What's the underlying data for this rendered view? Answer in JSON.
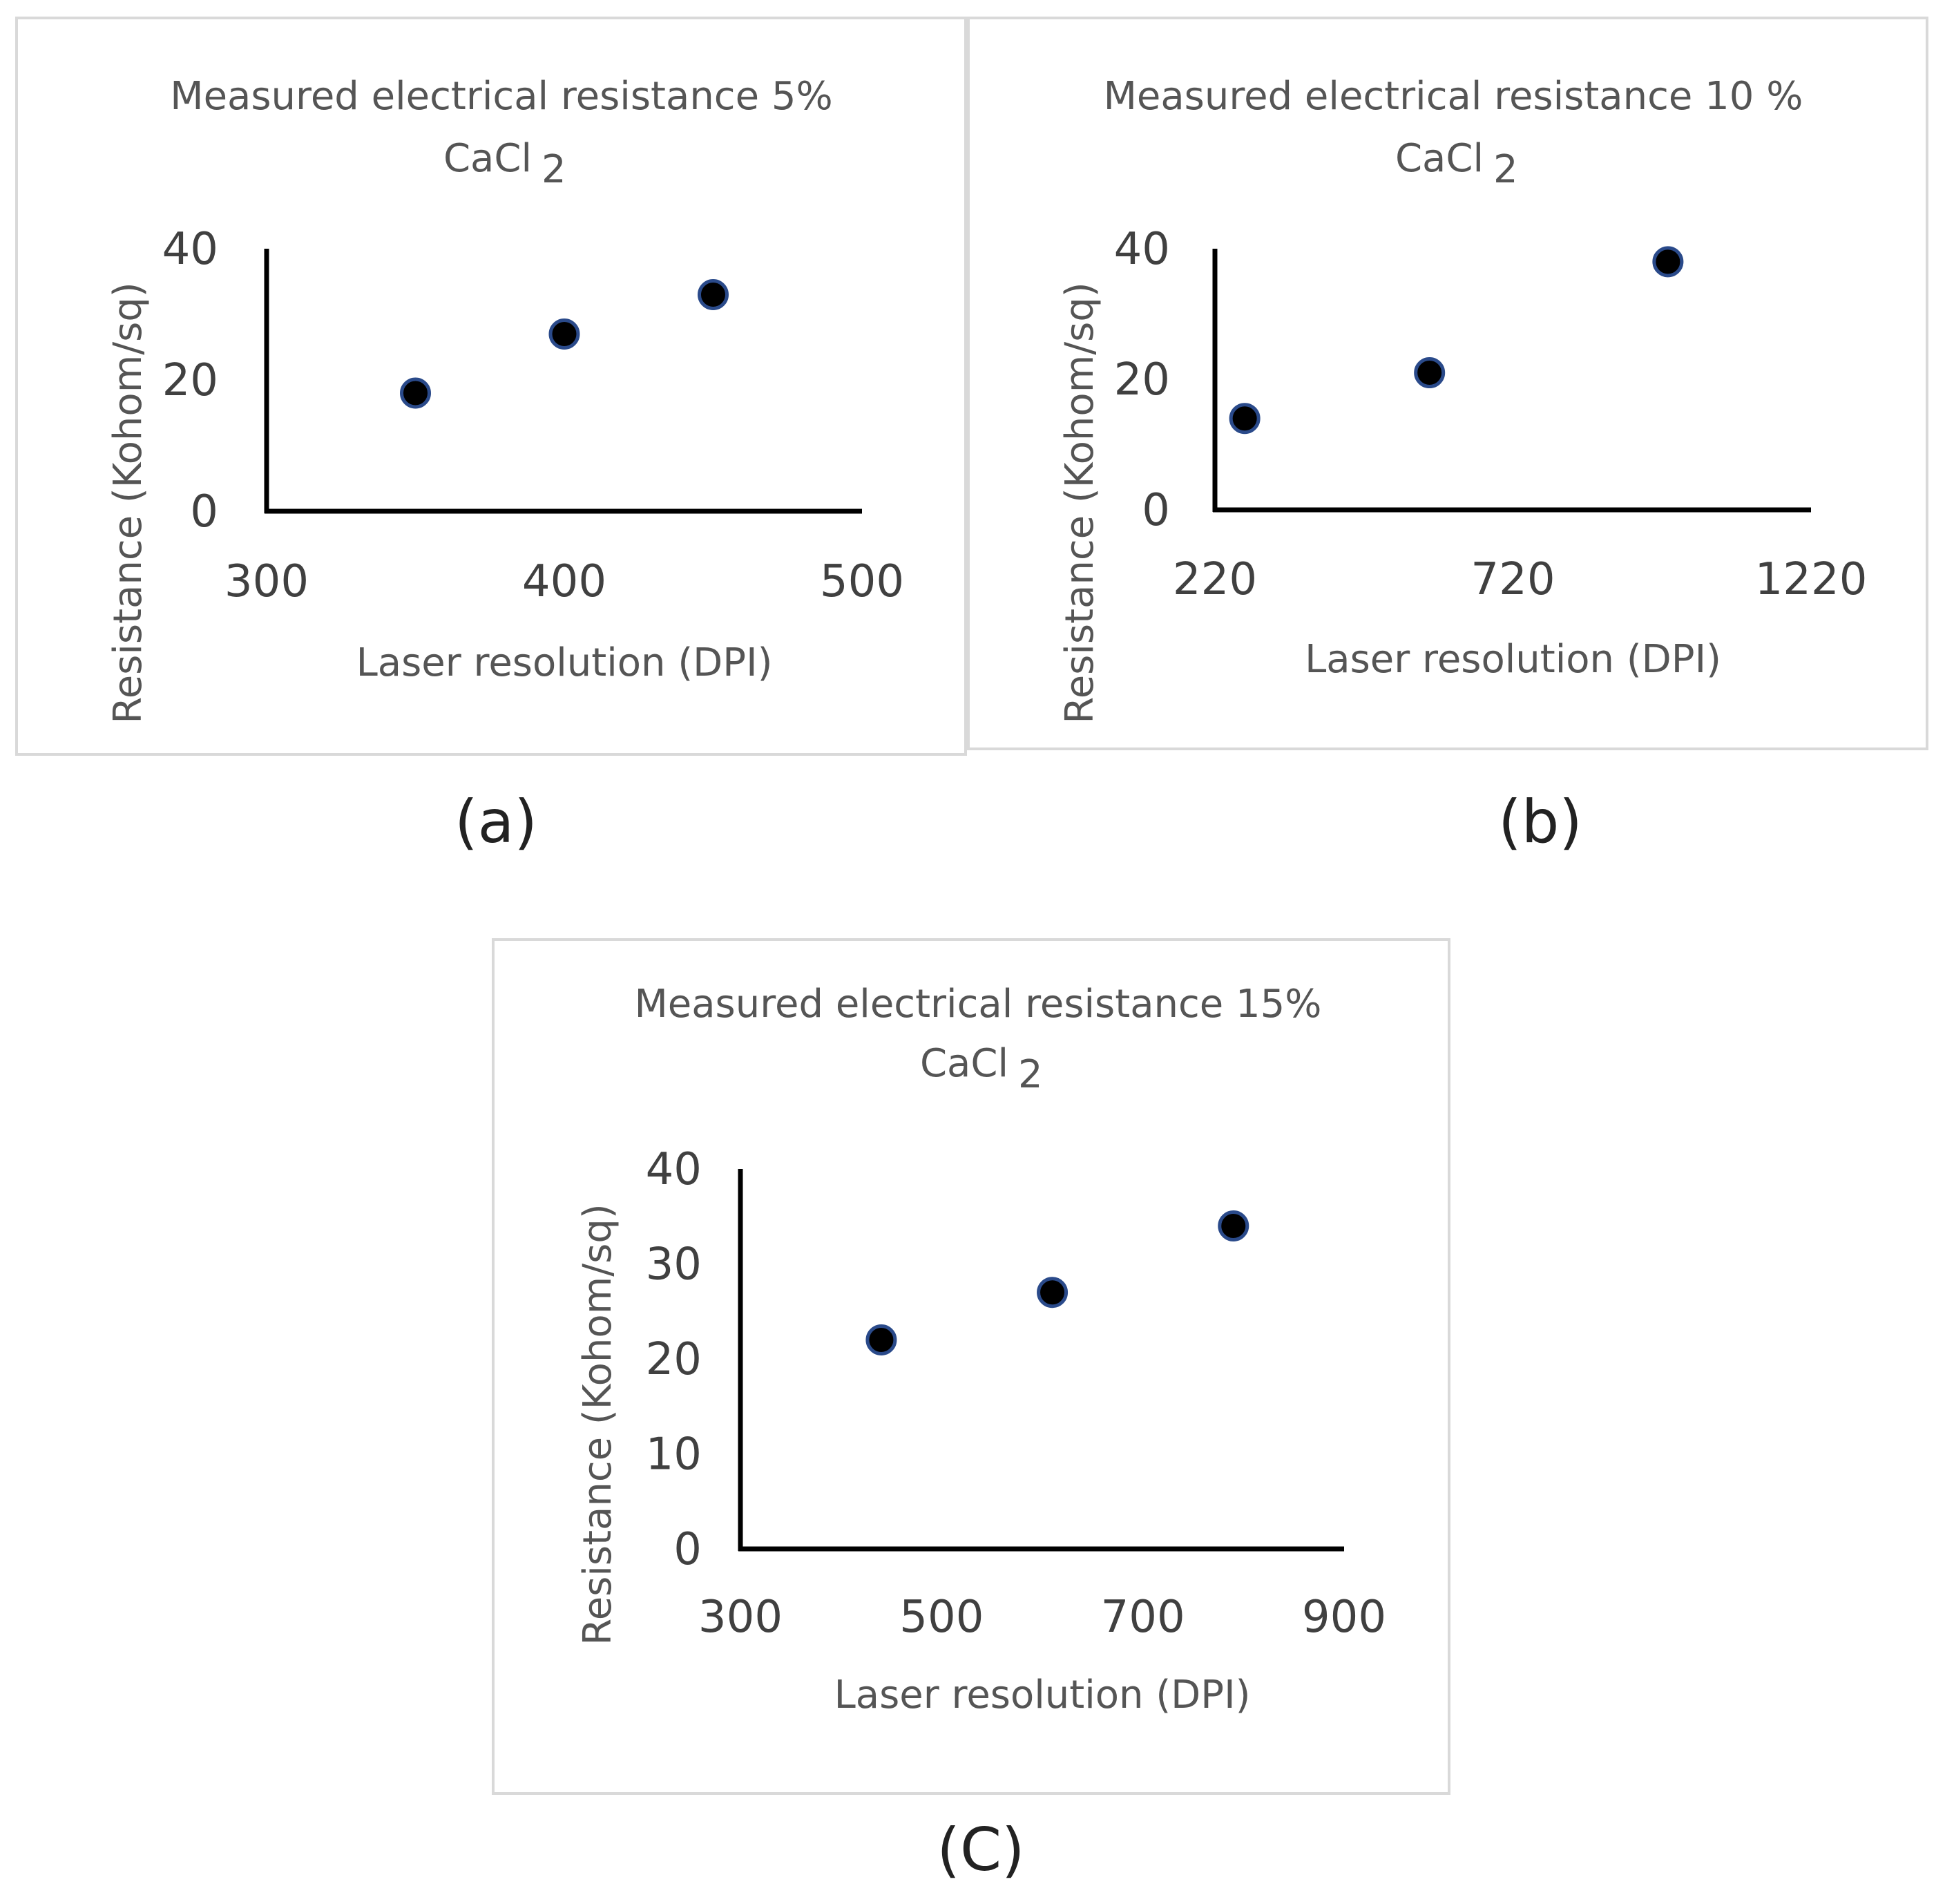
{
  "chart_data": [
    {
      "id": "a",
      "type": "scatter",
      "title_line1": "Measured electrical resistance 5%",
      "title_line2": "CaCl",
      "title_sub": "2",
      "xlabel": "Laser resolution (DPI)",
      "ylabel": "Resistance (Kohom/sq)",
      "xlim": [
        300,
        500
      ],
      "ylim": [
        0,
        40
      ],
      "xticks": [
        300,
        400,
        500
      ],
      "yticks": [
        0,
        20,
        40
      ],
      "x": [
        350,
        400,
        450
      ],
      "y": [
        18,
        27,
        33
      ],
      "marker_color": "#000000",
      "marker_edge_color": "#2a4a8a",
      "caption": "(a)"
    },
    {
      "id": "b",
      "type": "scatter",
      "title_line1": "Measured electrical resistance 10 %",
      "title_line2": "CaCl",
      "title_sub": "2",
      "xlabel": "Laser resolution (DPI)",
      "ylabel": "Resistance (Kohom/sq)",
      "xlim": [
        220,
        1220
      ],
      "ylim": [
        0,
        40
      ],
      "xticks": [
        220,
        720,
        1220
      ],
      "yticks": [
        0,
        20,
        40
      ],
      "x": [
        270,
        580,
        980
      ],
      "y": [
        14,
        21,
        38
      ],
      "marker_color": "#000000",
      "marker_edge_color": "#2a4a8a",
      "caption": "(b)"
    },
    {
      "id": "c",
      "type": "scatter",
      "title_line1": "Measured electrical resistance 15%",
      "title_line2": "CaCl",
      "title_sub": "2",
      "xlabel": "Laser resolution (DPI)",
      "ylabel": "Resistance (Kohom/sq)",
      "xlim": [
        300,
        900
      ],
      "ylim": [
        0,
        40
      ],
      "xticks": [
        300,
        500,
        700,
        900
      ],
      "yticks": [
        0,
        10,
        20,
        30,
        40
      ],
      "x": [
        440,
        610,
        790
      ],
      "y": [
        22,
        27,
        34
      ],
      "marker_color": "#000000",
      "marker_edge_color": "#2a4a8a",
      "caption": "(C)"
    }
  ]
}
